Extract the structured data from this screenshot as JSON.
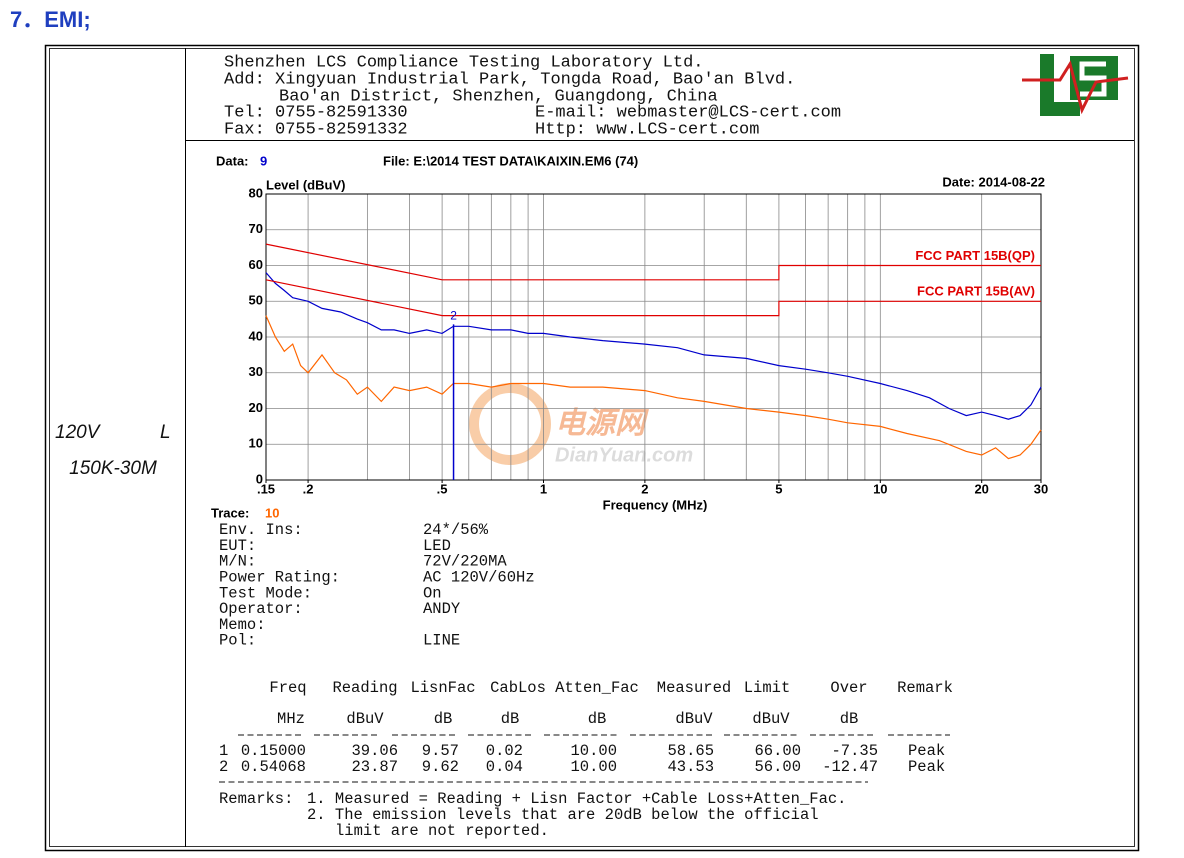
{
  "heading": "7．EMI;",
  "condition": {
    "voltage": "120V",
    "line": "L",
    "range": "150K-30M"
  },
  "lab": {
    "name": "Shenzhen LCS Compliance Testing Laboratory Ltd.",
    "address": [
      "Add: Xingyuan Industrial Park, Tongda Road, Bao'an Blvd.",
      "Bao'an District, Shenzhen, Guangdong, China"
    ],
    "tel": "Tel: 0755-82591330",
    "email": "E-mail: webmaster@LCS-cert.com",
    "fax": "Fax: 0755-82591332",
    "http": "Http: www.LCS-cert.com"
  },
  "chart_data": {
    "type": "line",
    "data_label": "Data:",
    "data_no": "9",
    "file": "File: E:\\2014 TEST DATA\\KAIXIN.EM6  (74)",
    "date": "Date: 2014-08-22",
    "y_label": "Level (dBuV)",
    "x_label": "Frequency (MHz)",
    "x_scale": "log",
    "grid": true,
    "xlim": [
      0.15,
      30
    ],
    "xticks": [
      {
        "value": 0.15,
        "label": ".15"
      },
      {
        "value": 0.2,
        "label": ".2"
      },
      {
        "value": 0.5,
        "label": ".5"
      },
      1,
      2,
      5,
      10,
      20,
      30
    ],
    "xgrid": [
      0.2,
      0.3,
      0.4,
      0.5,
      0.6,
      0.7,
      0.8,
      0.9,
      1,
      2,
      3,
      4,
      5,
      6,
      7,
      8,
      9,
      10,
      20
    ],
    "ylim": [
      0,
      80
    ],
    "yticks": [
      0,
      10,
      20,
      30,
      40,
      50,
      60,
      70,
      80
    ],
    "limits": [
      {
        "name": "FCC PART 15B(QP)",
        "color": "#e00000",
        "x": [
          0.15,
          0.5,
          5,
          5,
          30
        ],
        "values": [
          66,
          56,
          56,
          60,
          60
        ]
      },
      {
        "name": "FCC PART 15B(AV)",
        "color": "#e00000",
        "x": [
          0.15,
          0.5,
          5,
          5,
          30
        ],
        "values": [
          56,
          46,
          46,
          50,
          50
        ]
      }
    ],
    "series": [
      {
        "color": "#0000cc",
        "x": [
          0.15,
          0.16,
          0.17,
          0.18,
          0.2,
          0.22,
          0.25,
          0.28,
          0.3,
          0.33,
          0.36,
          0.4,
          0.45,
          0.5,
          0.54,
          0.6,
          0.7,
          0.8,
          0.9,
          1,
          1.2,
          1.5,
          2,
          2.5,
          3,
          4,
          5,
          6,
          7,
          8,
          10,
          12,
          14,
          16,
          18,
          20,
          22,
          24,
          26,
          28,
          30
        ],
        "values": [
          58,
          55,
          53,
          51,
          50,
          48,
          47,
          45,
          44,
          42,
          42,
          41,
          42,
          41,
          43,
          43,
          42,
          42,
          41,
          41,
          40,
          39,
          38,
          37,
          35,
          34,
          32,
          31,
          30,
          29,
          27,
          25,
          23,
          20,
          18,
          19,
          18,
          17,
          18,
          21,
          26
        ]
      },
      {
        "color": "#ff6600",
        "x": [
          0.15,
          0.16,
          0.17,
          0.18,
          0.19,
          0.2,
          0.22,
          0.24,
          0.26,
          0.28,
          0.3,
          0.33,
          0.36,
          0.4,
          0.45,
          0.5,
          0.54,
          0.6,
          0.7,
          0.8,
          0.9,
          1,
          1.2,
          1.5,
          2,
          2.5,
          3,
          4,
          5,
          6,
          7,
          8,
          10,
          12,
          15,
          18,
          20,
          22,
          24,
          26,
          28,
          30
        ],
        "values": [
          46,
          40,
          36,
          38,
          32,
          30,
          35,
          30,
          28,
          24,
          26,
          22,
          26,
          25,
          26,
          24,
          27,
          27,
          26,
          27,
          27,
          27,
          26,
          26,
          25,
          23,
          22,
          20,
          19,
          18,
          17,
          16,
          15,
          13,
          11,
          8,
          7,
          9,
          6,
          7,
          10,
          14
        ]
      }
    ],
    "marker": {
      "label": "2",
      "x": 0.54068,
      "value": 43.53,
      "color": "#0000cc"
    },
    "trace_label": "Trace:",
    "trace_no": "10"
  },
  "info": {
    "rows": [
      [
        "Env. Ins:",
        "24*/56%"
      ],
      [
        "EUT:",
        "LED"
      ],
      [
        "M/N:",
        "72V/220MA"
      ],
      [
        "Power Rating:",
        "AC 120V/60Hz"
      ],
      [
        "Test Mode:",
        "On"
      ],
      [
        "Operator:",
        "ANDY"
      ],
      [
        "Memo:"
      ],
      [
        "Pol:",
        "LINE"
      ]
    ]
  },
  "results": {
    "header": [
      "Freq",
      "Reading",
      "LisnFac",
      "CabLos",
      "Atten_Fac",
      "Measured",
      "Limit",
      "Over",
      "Remark"
    ],
    "units": [
      "MHz",
      "dBuV",
      "dB",
      "dB",
      "dB",
      "dBuV",
      "dBuV",
      "dB"
    ],
    "rows": [
      [
        "1",
        "0.15000",
        "39.06",
        "9.57",
        "0.02",
        "10.00",
        "58.65",
        "66.00",
        "-7.35",
        "Peak"
      ],
      [
        "2",
        "0.54068",
        "23.87",
        "9.62",
        "0.04",
        "10.00",
        "43.53",
        "56.00",
        "-12.47",
        "Peak"
      ]
    ],
    "remarks_label": "Remarks:",
    "remarks": [
      "1. Measured = Reading + Lisn Factor +Cable Loss+Atten_Fac.",
      "2. The emission levels that are 20dB below the official",
      "limit are not reported."
    ]
  },
  "watermark": {
    "cn": "电源网",
    "en": "DianYuan.com"
  }
}
